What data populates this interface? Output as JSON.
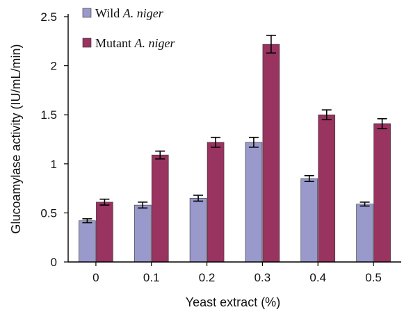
{
  "chart_data": {
    "type": "bar",
    "xlabel": "Yeast extract (%)",
    "ylabel": "Glucoamylase activity (IU/mL/min)",
    "categories": [
      "0",
      "0.1",
      "0.2",
      "0.3",
      "0.4",
      "0.5"
    ],
    "ylim": [
      0,
      2.5
    ],
    "yticks": [
      "0",
      "0.5",
      "1",
      "1.5",
      "2",
      "2.5"
    ],
    "grid": false,
    "legend_position": "top-left",
    "series": [
      {
        "name_plain": "Wild ",
        "name_italic": "A. niger",
        "color": "#9999cc",
        "values": [
          0.42,
          0.58,
          0.65,
          1.22,
          0.85,
          0.59
        ],
        "errors": [
          0.02,
          0.03,
          0.03,
          0.05,
          0.03,
          0.02
        ]
      },
      {
        "name_plain": "Mutant ",
        "name_italic": "A. niger",
        "color": "#99335f",
        "values": [
          0.61,
          1.09,
          1.22,
          2.22,
          1.5,
          1.41
        ],
        "errors": [
          0.03,
          0.04,
          0.05,
          0.09,
          0.05,
          0.05
        ]
      }
    ]
  }
}
